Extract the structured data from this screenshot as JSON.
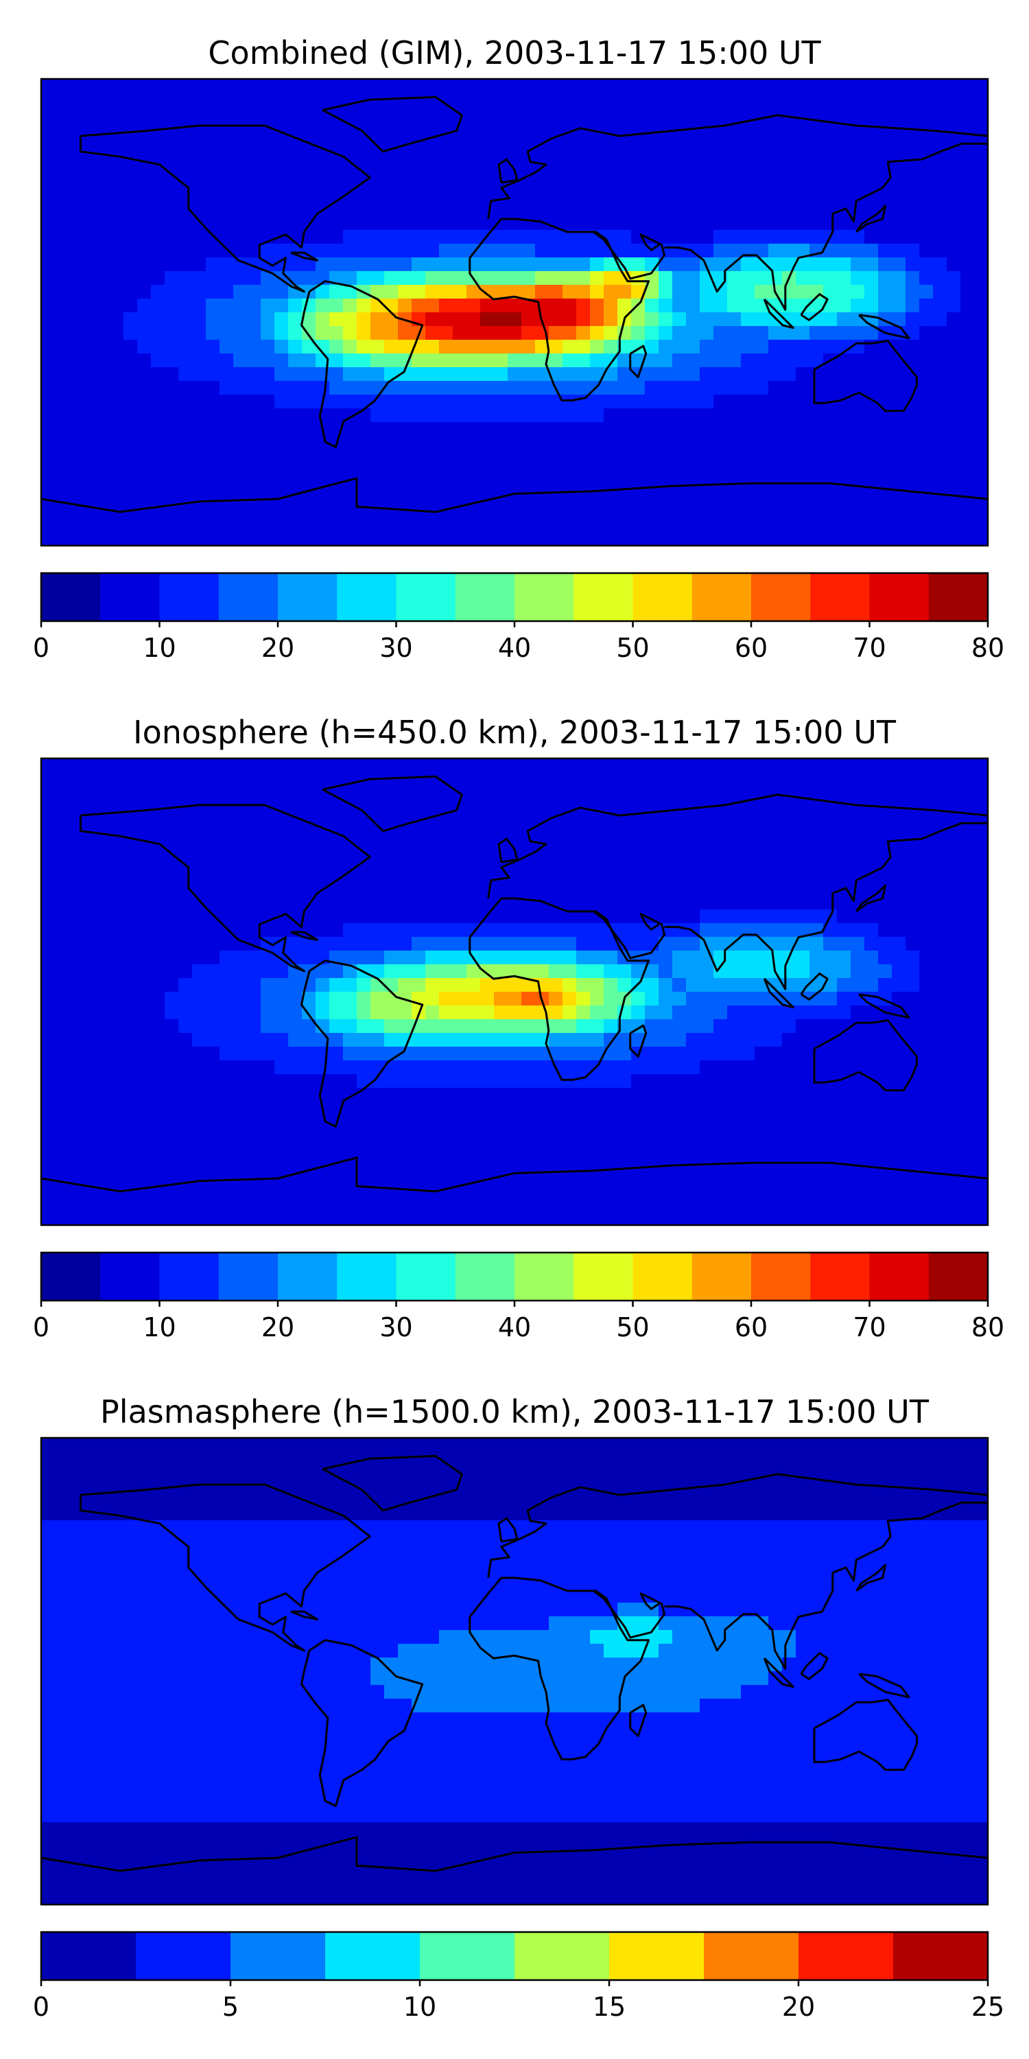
{
  "chart_data": [
    {
      "type": "heatmap",
      "title": "Combined (GIM), 2003-11-17 15:00 UT",
      "map": "world-coastlines",
      "axes_ticks": false,
      "colormap": "jet",
      "colorbar": {
        "location": "bottom",
        "levels": [
          0,
          5,
          10,
          15,
          20,
          25,
          30,
          35,
          40,
          45,
          50,
          55,
          60,
          65,
          70,
          75,
          80
        ],
        "ticks": [
          0,
          10,
          20,
          30,
          40,
          50,
          60,
          70,
          80
        ],
        "tick_labels": [
          "0",
          "10",
          "20",
          "30",
          "40",
          "50",
          "60",
          "70",
          "80"
        ]
      },
      "features": [
        {
          "lon": -35,
          "lat": -5,
          "value": 62,
          "sx": 40,
          "sy": 14
        },
        {
          "lon": 15,
          "lat": 0,
          "value": 72,
          "sx": 30,
          "sy": 12
        },
        {
          "lon": 40,
          "lat": 10,
          "value": 55,
          "sx": 16,
          "sy": 8
        },
        {
          "lon": -10,
          "lat": -3,
          "value": 67,
          "sx": 50,
          "sy": 14
        },
        {
          "lon": 105,
          "lat": 8,
          "value": 36,
          "sx": 38,
          "sy": 14
        },
        {
          "lon": -10,
          "lat": -5,
          "value": 28,
          "sx": 90,
          "sy": 24
        }
      ],
      "background_value": 10
    },
    {
      "type": "heatmap",
      "title": "Ionosphere  (h=450.0 km), 2003-11-17 15:00 UT",
      "map": "world-coastlines",
      "axes_ticks": false,
      "colormap": "jet",
      "colorbar": {
        "location": "bottom",
        "levels": [
          0,
          5,
          10,
          15,
          20,
          25,
          30,
          35,
          40,
          45,
          50,
          55,
          60,
          65,
          70,
          75,
          80
        ],
        "ticks": [
          0,
          10,
          20,
          30,
          40,
          50,
          60,
          70,
          80
        ],
        "tick_labels": [
          "0",
          "10",
          "20",
          "30",
          "40",
          "50",
          "60",
          "70",
          "80"
        ]
      },
      "features": [
        {
          "lon": -35,
          "lat": -5,
          "value": 45,
          "sx": 36,
          "sy": 13
        },
        {
          "lon": 10,
          "lat": -3,
          "value": 58,
          "sx": 25,
          "sy": 10
        },
        {
          "lon": -5,
          "lat": -2,
          "value": 48,
          "sx": 50,
          "sy": 14
        },
        {
          "lon": 95,
          "lat": 10,
          "value": 27,
          "sx": 40,
          "sy": 14
        },
        {
          "lon": -10,
          "lat": -5,
          "value": 22,
          "sx": 90,
          "sy": 24
        }
      ],
      "background_value": 9
    },
    {
      "type": "heatmap",
      "title": "Plasmasphere (h=1500.0 km), 2003-11-17 15:00 UT",
      "map": "world-coastlines",
      "axes_ticks": false,
      "colormap": "jet",
      "colorbar": {
        "location": "bottom",
        "levels": [
          0,
          2.5,
          5,
          7.5,
          10,
          12.5,
          15,
          17.5,
          20,
          22.5,
          25
        ],
        "ticks": [
          0,
          5,
          10,
          15,
          20,
          25
        ],
        "tick_labels": [
          "0",
          "5",
          "10",
          "15",
          "20",
          "25"
        ]
      },
      "features": [
        {
          "lon": 45,
          "lat": 13,
          "value": 8.5,
          "sx": 28,
          "sy": 10
        },
        {
          "lon": 75,
          "lat": 10,
          "value": 6,
          "sx": 45,
          "sy": 14
        },
        {
          "lon": -30,
          "lat": -8,
          "value": 4,
          "sx": 40,
          "sy": 14
        },
        {
          "lon": 130,
          "lat": -15,
          "value": 3,
          "sx": 30,
          "sy": 12
        },
        {
          "lon": 20,
          "lat": 0,
          "value": 5.5,
          "sx": 120,
          "sy": 28
        }
      ],
      "background_value": 3.2
    }
  ],
  "colors": {
    "jet_ramp": [
      "#00007f",
      "#0000ff",
      "#007fff",
      "#00ffff",
      "#7fff7f",
      "#ffff00",
      "#ff7f00",
      "#ff0000",
      "#7f0000"
    ],
    "coastline": "#000000",
    "frame": "#000000"
  }
}
